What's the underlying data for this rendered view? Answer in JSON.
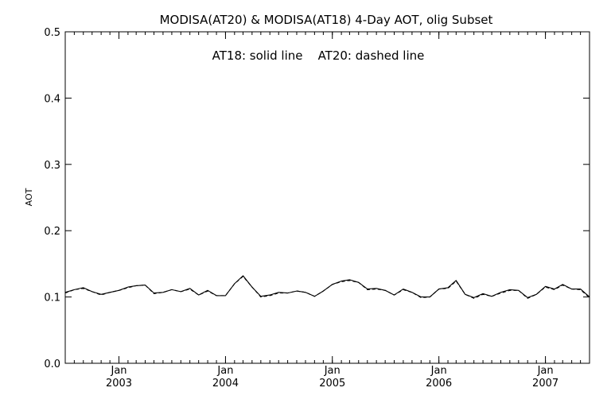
{
  "chart_data": {
    "type": "line",
    "title": "MODISA(AT20) & MODISA(AT18) 4-Day AOT, olig Subset",
    "annotation": "AT18: solid line    AT20: dashed line",
    "xlabel": "",
    "ylabel": "AOT",
    "xlim": [
      "2002-07-01",
      "2007-06-01"
    ],
    "ylim": [
      0.0,
      0.5
    ],
    "y_ticks": [
      "0.0",
      "0.1",
      "0.2",
      "0.3",
      "0.4",
      "0.5"
    ],
    "x_ticks": [
      {
        "month": "Jan",
        "year": "2003",
        "date": "2003-01-01"
      },
      {
        "month": "Jan",
        "year": "2004",
        "date": "2004-01-01"
      },
      {
        "month": "Jan",
        "year": "2005",
        "date": "2005-01-01"
      },
      {
        "month": "Jan",
        "year": "2006",
        "date": "2006-01-01"
      },
      {
        "month": "Jan",
        "year": "2007",
        "date": "2007-01-01"
      }
    ],
    "grid": false,
    "legend": "none",
    "series": [
      {
        "name": "AT18",
        "style": "solid",
        "x": [
          "2002-07-01",
          "2002-08-01",
          "2002-09-01",
          "2002-10-01",
          "2002-11-01",
          "2002-12-01",
          "2003-01-01",
          "2003-02-01",
          "2003-03-01",
          "2003-04-01",
          "2003-05-01",
          "2003-06-01",
          "2003-07-01",
          "2003-08-01",
          "2003-09-01",
          "2003-10-01",
          "2003-11-01",
          "2003-12-01",
          "2004-01-01",
          "2004-02-01",
          "2004-03-01",
          "2004-04-01",
          "2004-05-01",
          "2004-06-01",
          "2004-07-01",
          "2004-08-01",
          "2004-09-01",
          "2004-10-01",
          "2004-11-01",
          "2004-12-01",
          "2005-01-01",
          "2005-02-01",
          "2005-03-01",
          "2005-04-01",
          "2005-05-01",
          "2005-06-01",
          "2005-07-01",
          "2005-08-01",
          "2005-09-01",
          "2005-10-01",
          "2005-11-01",
          "2005-12-01",
          "2006-01-01",
          "2006-02-01",
          "2006-03-01",
          "2006-04-01",
          "2006-05-01",
          "2006-06-01",
          "2006-07-01",
          "2006-08-01",
          "2006-09-01",
          "2006-10-01",
          "2006-11-01",
          "2006-12-01",
          "2007-01-01",
          "2007-02-01",
          "2007-03-01",
          "2007-04-01",
          "2007-05-01",
          "2007-06-01"
        ],
        "values": [
          0.107,
          0.111,
          0.114,
          0.108,
          0.104,
          0.107,
          0.11,
          0.115,
          0.117,
          0.118,
          0.106,
          0.107,
          0.111,
          0.108,
          0.113,
          0.103,
          0.11,
          0.102,
          0.102,
          0.12,
          0.132,
          0.115,
          0.101,
          0.103,
          0.107,
          0.106,
          0.109,
          0.107,
          0.101,
          0.109,
          0.119,
          0.124,
          0.126,
          0.122,
          0.112,
          0.113,
          0.11,
          0.103,
          0.112,
          0.107,
          0.1,
          0.1,
          0.112,
          0.114,
          0.125,
          0.104,
          0.099,
          0.105,
          0.101,
          0.107,
          0.111,
          0.11,
          0.099,
          0.104,
          0.116,
          0.112,
          0.119,
          0.112,
          0.112,
          0.1
        ]
      },
      {
        "name": "AT20",
        "style": "dashed",
        "x": [
          "2002-07-01",
          "2002-08-01",
          "2002-09-01",
          "2002-10-01",
          "2002-11-01",
          "2002-12-01",
          "2003-01-01",
          "2003-02-01",
          "2003-03-01",
          "2003-04-01",
          "2003-05-01",
          "2003-06-01",
          "2003-07-01",
          "2003-08-01",
          "2003-09-01",
          "2003-10-01",
          "2003-11-01",
          "2003-12-01",
          "2004-01-01",
          "2004-02-01",
          "2004-03-01",
          "2004-04-01",
          "2004-05-01",
          "2004-06-01",
          "2004-07-01",
          "2004-08-01",
          "2004-09-01",
          "2004-10-01",
          "2004-11-01",
          "2004-12-01",
          "2005-01-01",
          "2005-02-01",
          "2005-03-01",
          "2005-04-01",
          "2005-05-01",
          "2005-06-01",
          "2005-07-01",
          "2005-08-01",
          "2005-09-01",
          "2005-10-01",
          "2005-11-01",
          "2005-12-01",
          "2006-01-01",
          "2006-02-01",
          "2006-03-01",
          "2006-04-01",
          "2006-05-01",
          "2006-06-01",
          "2006-07-01",
          "2006-08-01",
          "2006-09-01",
          "2006-10-01",
          "2006-11-01",
          "2006-12-01",
          "2007-01-01",
          "2007-02-01",
          "2007-03-01",
          "2007-04-01",
          "2007-05-01",
          "2007-06-01"
        ],
        "values": [
          0.106,
          0.111,
          0.113,
          0.108,
          0.103,
          0.107,
          0.11,
          0.114,
          0.117,
          0.118,
          0.105,
          0.107,
          0.111,
          0.108,
          0.112,
          0.103,
          0.109,
          0.102,
          0.102,
          0.12,
          0.131,
          0.115,
          0.1,
          0.102,
          0.106,
          0.106,
          0.109,
          0.107,
          0.101,
          0.109,
          0.119,
          0.123,
          0.125,
          0.122,
          0.111,
          0.112,
          0.11,
          0.103,
          0.111,
          0.107,
          0.099,
          0.1,
          0.112,
          0.113,
          0.124,
          0.104,
          0.098,
          0.104,
          0.101,
          0.106,
          0.11,
          0.11,
          0.098,
          0.104,
          0.115,
          0.111,
          0.118,
          0.112,
          0.111,
          0.099
        ]
      }
    ]
  }
}
